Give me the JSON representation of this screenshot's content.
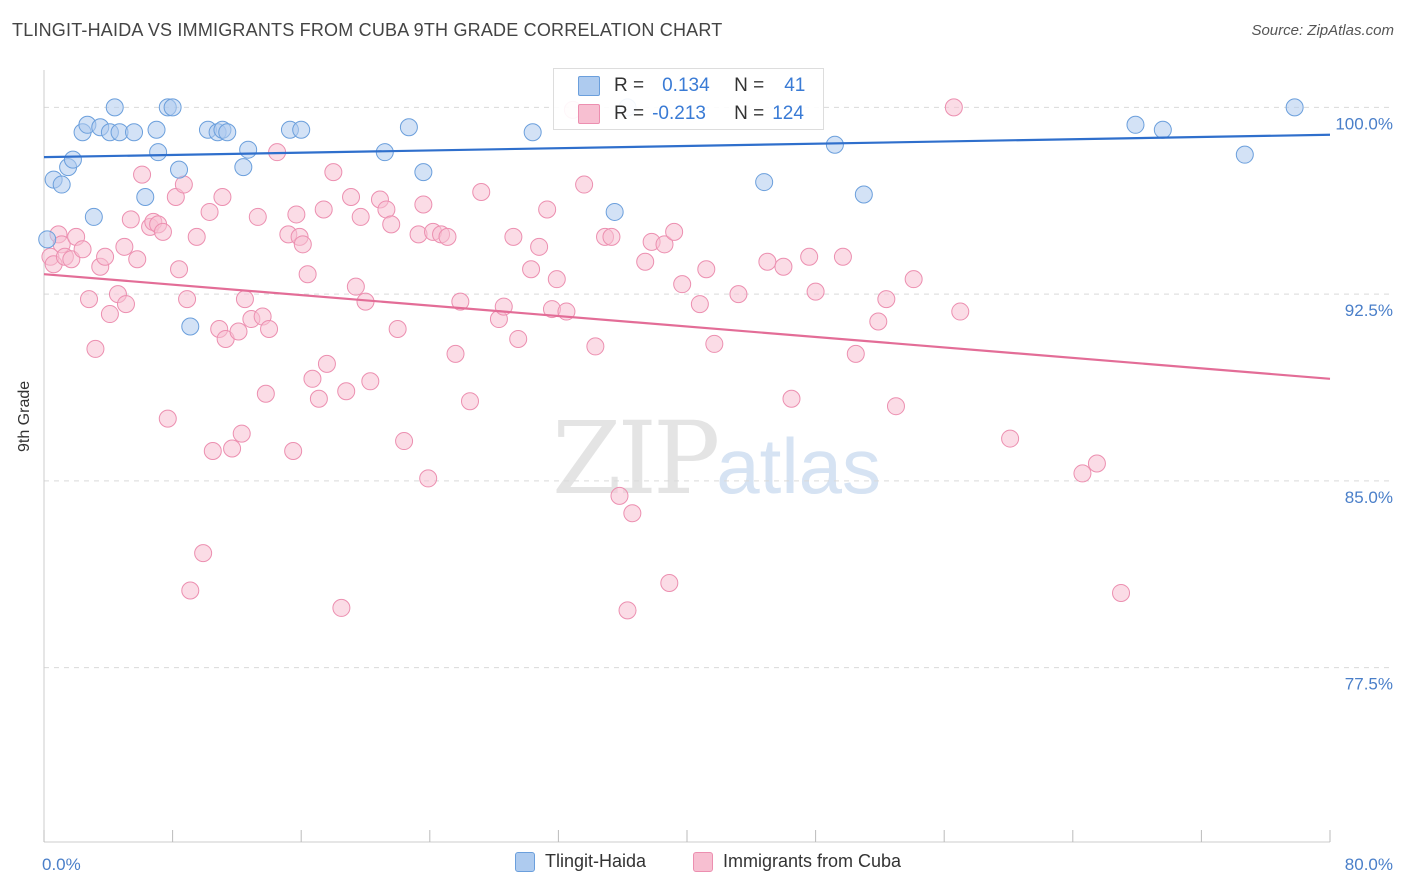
{
  "title": "TLINGIT-HAIDA VS IMMIGRANTS FROM CUBA 9TH GRADE CORRELATION CHART",
  "source": "Source: ZipAtlas.com",
  "watermark": {
    "zip": "ZIP",
    "atlas": "atlas"
  },
  "legend": {
    "rows": [
      {
        "r_label": "R =",
        "r_value": "0.134",
        "n_label": "N =",
        "n_value": "41"
      },
      {
        "r_label": "R =",
        "r_value": "-0.213",
        "n_label": "N =",
        "n_value": "124"
      }
    ]
  },
  "bottom_legend": [
    "Tlingit-Haida",
    "Immigrants from Cuba"
  ],
  "chart_data": {
    "type": "scatter",
    "xlabel": "",
    "ylabel": "9th Grade",
    "xlim": [
      0,
      80
    ],
    "ylim": [
      70.5,
      101.5
    ],
    "x_tick_labels": [
      "0.0%",
      "80.0%"
    ],
    "y_ticks": [
      100.0,
      92.5,
      85.0,
      77.5
    ],
    "y_tick_labels": [
      "100.0%",
      "92.5%",
      "85.0%",
      "77.5%"
    ],
    "grid": true,
    "colors": {
      "tlingit_fill": "#aecbef",
      "tlingit_stroke": "#6b9fdc",
      "tlingit_line": "#2f6fcc",
      "cuba_fill": "#f7bfd1",
      "cuba_stroke": "#ec8fb0",
      "cuba_line": "#e36d97"
    },
    "series": [
      {
        "name": "Tlingit-Haida",
        "trend": {
          "x": [
            0,
            80
          ],
          "y": [
            98.0,
            98.9
          ]
        },
        "points": [
          [
            0.2,
            94.7
          ],
          [
            0.6,
            97.1
          ],
          [
            1.1,
            96.9
          ],
          [
            1.5,
            97.6
          ],
          [
            1.8,
            97.9
          ],
          [
            2.4,
            99.0
          ],
          [
            2.7,
            99.3
          ],
          [
            3.1,
            95.6
          ],
          [
            3.5,
            99.2
          ],
          [
            4.1,
            99.0
          ],
          [
            4.4,
            100.0
          ],
          [
            4.7,
            99.0
          ],
          [
            5.6,
            99.0
          ],
          [
            6.3,
            96.4
          ],
          [
            7.0,
            99.1
          ],
          [
            7.1,
            98.2
          ],
          [
            7.7,
            100.0
          ],
          [
            8.0,
            100.0
          ],
          [
            8.4,
            97.5
          ],
          [
            9.1,
            91.2
          ],
          [
            10.2,
            99.1
          ],
          [
            10.8,
            99.0
          ],
          [
            11.1,
            99.1
          ],
          [
            11.4,
            99.0
          ],
          [
            12.4,
            97.6
          ],
          [
            12.7,
            98.3
          ],
          [
            15.3,
            99.1
          ],
          [
            16.0,
            99.1
          ],
          [
            21.2,
            98.2
          ],
          [
            22.7,
            99.2
          ],
          [
            23.6,
            97.4
          ],
          [
            30.4,
            99.0
          ],
          [
            35.5,
            95.8
          ],
          [
            36.3,
            100.0
          ],
          [
            44.8,
            97.0
          ],
          [
            49.2,
            98.5
          ],
          [
            51.0,
            96.5
          ],
          [
            67.9,
            99.3
          ],
          [
            69.6,
            99.1
          ],
          [
            74.7,
            98.1
          ],
          [
            77.8,
            100.0
          ]
        ]
      },
      {
        "name": "Immigrants from Cuba",
        "trend": {
          "x": [
            0,
            80
          ],
          "y": [
            93.3,
            89.1
          ]
        },
        "points": [
          [
            0.4,
            94.0
          ],
          [
            0.6,
            93.7
          ],
          [
            0.9,
            94.9
          ],
          [
            1.1,
            94.5
          ],
          [
            1.3,
            94.0
          ],
          [
            1.7,
            93.9
          ],
          [
            2.0,
            94.8
          ],
          [
            2.4,
            94.3
          ],
          [
            2.8,
            92.3
          ],
          [
            3.2,
            90.3
          ],
          [
            3.5,
            93.6
          ],
          [
            3.8,
            94.0
          ],
          [
            4.1,
            91.7
          ],
          [
            4.6,
            92.5
          ],
          [
            5.0,
            94.4
          ],
          [
            5.1,
            92.1
          ],
          [
            5.4,
            95.5
          ],
          [
            5.8,
            93.9
          ],
          [
            6.1,
            97.3
          ],
          [
            6.6,
            95.2
          ],
          [
            6.8,
            95.4
          ],
          [
            7.1,
            95.3
          ],
          [
            7.4,
            95.0
          ],
          [
            7.7,
            87.5
          ],
          [
            8.2,
            96.4
          ],
          [
            8.4,
            93.5
          ],
          [
            8.7,
            96.9
          ],
          [
            8.9,
            92.3
          ],
          [
            9.1,
            80.6
          ],
          [
            9.5,
            94.8
          ],
          [
            9.9,
            82.1
          ],
          [
            10.3,
            95.8
          ],
          [
            10.5,
            86.2
          ],
          [
            10.9,
            91.1
          ],
          [
            11.1,
            96.4
          ],
          [
            11.3,
            90.7
          ],
          [
            11.7,
            86.3
          ],
          [
            12.1,
            91.0
          ],
          [
            12.3,
            86.9
          ],
          [
            12.5,
            92.3
          ],
          [
            12.9,
            91.5
          ],
          [
            13.3,
            95.6
          ],
          [
            13.6,
            91.6
          ],
          [
            13.8,
            88.5
          ],
          [
            14.0,
            91.1
          ],
          [
            14.5,
            98.2
          ],
          [
            15.2,
            94.9
          ],
          [
            15.5,
            86.2
          ],
          [
            15.7,
            95.7
          ],
          [
            15.9,
            94.8
          ],
          [
            16.1,
            94.5
          ],
          [
            16.4,
            93.3
          ],
          [
            16.7,
            89.1
          ],
          [
            17.1,
            88.3
          ],
          [
            17.4,
            95.9
          ],
          [
            17.6,
            89.7
          ],
          [
            18.0,
            97.4
          ],
          [
            18.5,
            79.9
          ],
          [
            18.8,
            88.6
          ],
          [
            19.1,
            96.4
          ],
          [
            19.4,
            92.8
          ],
          [
            19.7,
            95.6
          ],
          [
            20.0,
            92.2
          ],
          [
            20.3,
            89.0
          ],
          [
            20.9,
            96.3
          ],
          [
            21.3,
            95.9
          ],
          [
            21.6,
            95.3
          ],
          [
            22.0,
            91.1
          ],
          [
            22.4,
            86.6
          ],
          [
            23.3,
            94.9
          ],
          [
            23.6,
            96.1
          ],
          [
            23.9,
            85.1
          ],
          [
            24.2,
            95.0
          ],
          [
            24.7,
            94.9
          ],
          [
            25.1,
            94.8
          ],
          [
            25.6,
            90.1
          ],
          [
            25.9,
            92.2
          ],
          [
            26.5,
            88.2
          ],
          [
            27.2,
            96.6
          ],
          [
            28.3,
            91.5
          ],
          [
            28.6,
            92.0
          ],
          [
            29.2,
            94.8
          ],
          [
            29.5,
            90.7
          ],
          [
            30.3,
            93.5
          ],
          [
            30.8,
            94.4
          ],
          [
            31.3,
            95.9
          ],
          [
            31.6,
            91.9
          ],
          [
            31.9,
            93.1
          ],
          [
            32.5,
            91.8
          ],
          [
            32.9,
            99.9
          ],
          [
            33.6,
            96.9
          ],
          [
            34.3,
            90.4
          ],
          [
            34.9,
            94.8
          ],
          [
            35.3,
            94.8
          ],
          [
            35.8,
            84.4
          ],
          [
            36.3,
            79.8
          ],
          [
            36.6,
            83.7
          ],
          [
            37.4,
            93.8
          ],
          [
            37.8,
            94.6
          ],
          [
            38.6,
            94.5
          ],
          [
            38.9,
            80.9
          ],
          [
            39.2,
            95.0
          ],
          [
            39.7,
            92.9
          ],
          [
            40.8,
            92.1
          ],
          [
            41.2,
            93.5
          ],
          [
            41.7,
            90.5
          ],
          [
            43.2,
            92.5
          ],
          [
            45.0,
            93.8
          ],
          [
            46.0,
            93.6
          ],
          [
            46.5,
            88.3
          ],
          [
            47.6,
            94.0
          ],
          [
            48.0,
            92.6
          ],
          [
            49.7,
            94.0
          ],
          [
            50.5,
            90.1
          ],
          [
            51.9,
            91.4
          ],
          [
            52.4,
            92.3
          ],
          [
            53.0,
            88.0
          ],
          [
            54.1,
            93.1
          ],
          [
            56.6,
            100.0
          ],
          [
            57.0,
            91.8
          ],
          [
            60.1,
            86.7
          ],
          [
            64.6,
            85.3
          ],
          [
            65.5,
            85.7
          ],
          [
            67.0,
            80.5
          ]
        ]
      }
    ]
  }
}
